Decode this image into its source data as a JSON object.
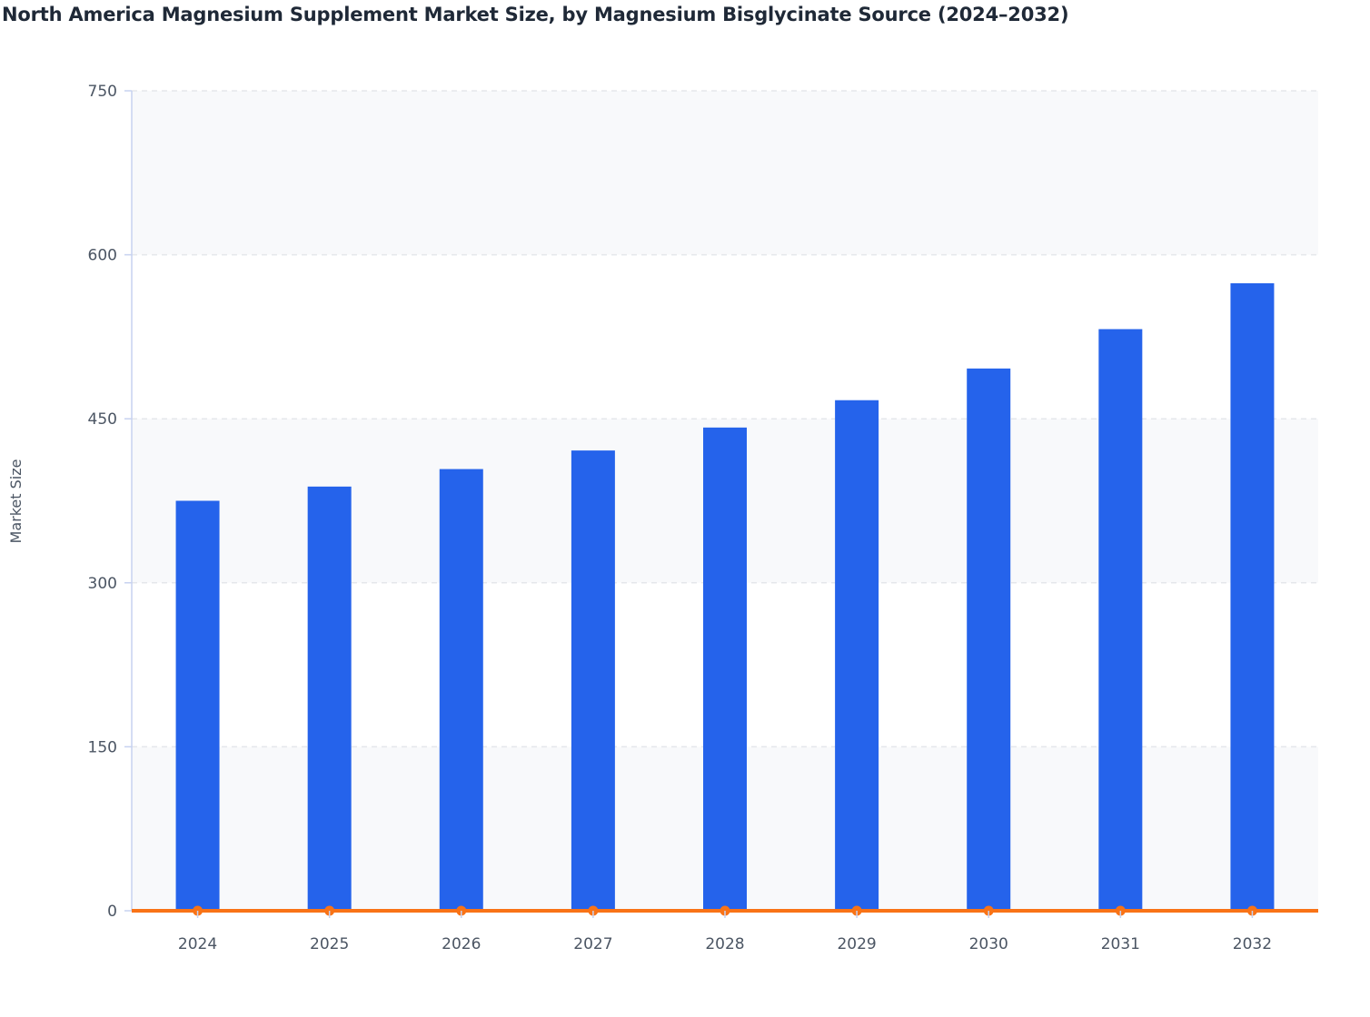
{
  "chart_data": {
    "type": "bar",
    "title": "North America Magnesium Supplement Market Size, by Magnesium Bisglycinate Source (2024–2032)",
    "xlabel": "",
    "ylabel": "Market Size",
    "ylim": [
      0,
      750
    ],
    "yticks": [
      0,
      150,
      300,
      450,
      600,
      750
    ],
    "categories": [
      "2024",
      "2025",
      "2026",
      "2027",
      "2028",
      "2029",
      "2030",
      "2031",
      "2032"
    ],
    "series": [
      {
        "type": "bar",
        "color": "#2563eb",
        "values": [
          375,
          388,
          404,
          421,
          442,
          467,
          496,
          532,
          574
        ]
      },
      {
        "type": "line",
        "color": "#f97316",
        "values": [
          0,
          0,
          0,
          0,
          0,
          0,
          0,
          0,
          0
        ]
      }
    ],
    "grid": true,
    "legend": "none"
  }
}
